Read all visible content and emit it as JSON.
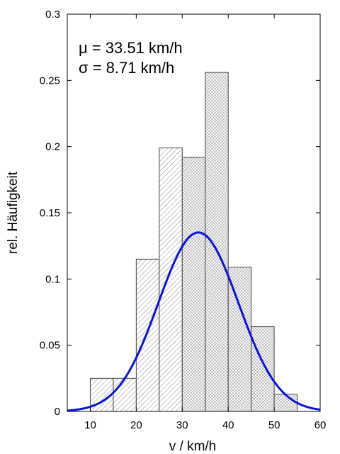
{
  "chart_data": {
    "type": "bar",
    "xlabel": "v / km/h",
    "ylabel": "rel. Häufigkeit",
    "xlim": [
      5,
      60
    ],
    "ylim": [
      0,
      0.3
    ],
    "xticks": [
      10,
      20,
      30,
      40,
      50,
      60
    ],
    "yticks": [
      0,
      0.05,
      0.1,
      0.15,
      0.2,
      0.25,
      0.3
    ],
    "ytick_labels": [
      "0",
      "0.05",
      "0.1",
      "0.15",
      "0.2",
      "0.25",
      "0.3"
    ],
    "grid": false,
    "bin_width": 5,
    "bins": [
      {
        "x0": 10,
        "x1": 15,
        "value": 0.025,
        "pattern": "light"
      },
      {
        "x0": 15,
        "x1": 20,
        "value": 0.025,
        "pattern": "light"
      },
      {
        "x0": 20,
        "x1": 25,
        "value": 0.115,
        "pattern": "light"
      },
      {
        "x0": 25,
        "x1": 30,
        "value": 0.199,
        "pattern": "light"
      },
      {
        "x0": 30,
        "x1": 35,
        "value": 0.192,
        "pattern": "dense"
      },
      {
        "x0": 35,
        "x1": 40,
        "value": 0.256,
        "pattern": "dense"
      },
      {
        "x0": 40,
        "x1": 45,
        "value": 0.109,
        "pattern": "dense"
      },
      {
        "x0": 45,
        "x1": 50,
        "value": 0.064,
        "pattern": "dense"
      },
      {
        "x0": 50,
        "x1": 55,
        "value": 0.013,
        "pattern": "dense"
      }
    ],
    "fit": {
      "type": "normal",
      "mean": 33.51,
      "std": 8.71,
      "scale": 2.95,
      "color": "#0a14d8"
    },
    "annotations": {
      "mu": "μ = 33.51 km/h",
      "sigma": "σ = 8.71 km/h"
    }
  }
}
